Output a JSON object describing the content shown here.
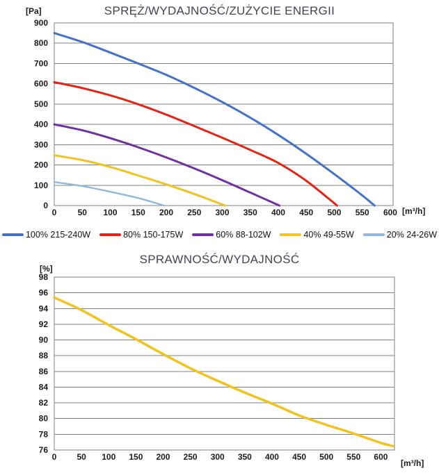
{
  "chart1": {
    "title": "SPRĘŻ/WYDAJNOŚĆ/ZUŻYCIE ENERGII",
    "y_unit": "[Pa]",
    "x_unit": "[m³/h]"
  },
  "chart2": {
    "title": "SPRAWNOŚĆ/WYDAJNOŚĆ",
    "y_unit": "[%]",
    "x_unit": "[m³/h]"
  },
  "colors": {
    "grid": "#7f7f7f",
    "axis_text": "#1b1b1b",
    "title_text": "#43444e"
  },
  "chart_data": [
    {
      "type": "line",
      "title": "SPRĘŻ/WYDAJNOŚĆ/ZUŻYCIE ENERGII",
      "xlabel": "[m³/h]",
      "ylabel": "[Pa]",
      "xlim": [
        0,
        605
      ],
      "ylim": [
        0,
        900
      ],
      "xtick_step": 50,
      "xtick_max": 600,
      "ytick_step": 100,
      "grid": "horizontal",
      "legend_position": "bottom",
      "series": [
        {
          "name": "100% 215-240W",
          "color": "#4472C4",
          "width": 3,
          "points": [
            [
              0,
              850
            ],
            [
              50,
              806
            ],
            [
              100,
              754
            ],
            [
              150,
              700
            ],
            [
              200,
              644
            ],
            [
              250,
              580
            ],
            [
              300,
              510
            ],
            [
              350,
              433
            ],
            [
              400,
              348
            ],
            [
              450,
              255
            ],
            [
              500,
              155
            ],
            [
              550,
              50
            ],
            [
              572,
              0
            ]
          ]
        },
        {
          "name": "80% 150-175W",
          "color": "#E32313",
          "width": 3,
          "points": [
            [
              0,
              608
            ],
            [
              50,
              579
            ],
            [
              100,
              543
            ],
            [
              150,
              499
            ],
            [
              200,
              448
            ],
            [
              250,
              392
            ],
            [
              300,
              334
            ],
            [
              350,
              274
            ],
            [
              400,
              210
            ],
            [
              450,
              122
            ],
            [
              505,
              0
            ]
          ]
        },
        {
          "name": "60% 88-102W",
          "color": "#7030A0",
          "width": 3,
          "points": [
            [
              0,
              400
            ],
            [
              50,
              371
            ],
            [
              100,
              332
            ],
            [
              150,
              287
            ],
            [
              200,
              237
            ],
            [
              250,
              183
            ],
            [
              300,
              125
            ],
            [
              350,
              64
            ],
            [
              402,
              0
            ]
          ]
        },
        {
          "name": "40% 49-55W",
          "color": "#F2C21F",
          "width": 3,
          "points": [
            [
              0,
              248
            ],
            [
              50,
              224
            ],
            [
              100,
              190
            ],
            [
              150,
              148
            ],
            [
              200,
              104
            ],
            [
              250,
              57
            ],
            [
              305,
              0
            ]
          ]
        },
        {
          "name": "20% 24-26W",
          "color": "#8FB8E0",
          "width": 2.4,
          "points": [
            [
              0,
              116
            ],
            [
              50,
              96
            ],
            [
              100,
              68
            ],
            [
              150,
              37
            ],
            [
              196,
              0
            ]
          ]
        }
      ]
    },
    {
      "type": "line",
      "title": "SPRAWNOŚĆ/WYDAJNOŚĆ",
      "xlabel": "[m³/h]",
      "ylabel": "[%]",
      "xlim": [
        0,
        625
      ],
      "ylim": [
        76,
        98
      ],
      "xtick_step": 50,
      "xtick_max": 600,
      "ytick_step": 2,
      "grid": "horizontal",
      "legend_position": "none",
      "series": [
        {
          "name": "sprawność",
          "color": "#F2C21F",
          "width": 3.5,
          "points": [
            [
              0,
              95.4
            ],
            [
              50,
              93.8
            ],
            [
              100,
              91.9
            ],
            [
              150,
              90.1
            ],
            [
              200,
              88.2
            ],
            [
              250,
              86.4
            ],
            [
              300,
              84.8
            ],
            [
              350,
              83.3
            ],
            [
              400,
              81.9
            ],
            [
              450,
              80.4
            ],
            [
              500,
              79.2
            ],
            [
              550,
              78.1
            ],
            [
              600,
              76.9
            ],
            [
              622,
              76.5
            ]
          ]
        }
      ]
    }
  ]
}
